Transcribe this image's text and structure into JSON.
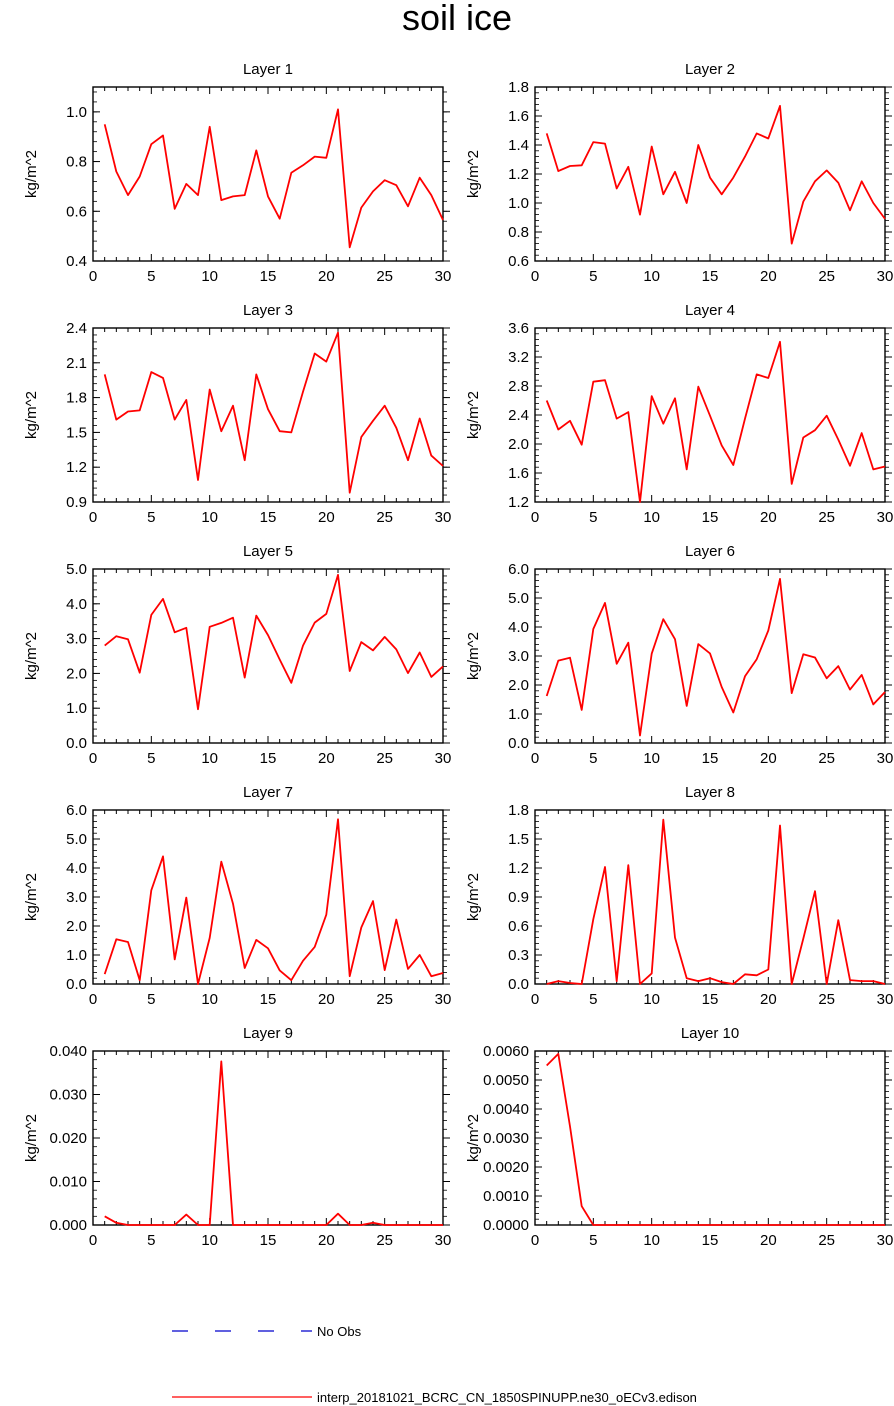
{
  "title": "soil ice",
  "colors": {
    "model": "#ff0000",
    "obs": "#0000cc",
    "axes": "#000000",
    "background": "#ffffff"
  },
  "legend": {
    "obs_label": "No Obs",
    "model_label": "interp_20181021_BCRC_CN_1850SPINUPP.ne30_oECv3.edison"
  },
  "chart_data": [
    {
      "type": "line",
      "title": "Layer 1",
      "ylabel": "kg/m^2",
      "xlim": [
        0,
        30
      ],
      "xticks": [
        0,
        5,
        10,
        15,
        20,
        25,
        30
      ],
      "ylim": [
        0.4,
        1.1
      ],
      "yticks": [
        "0.4",
        "0.6",
        "0.8",
        "1.0"
      ],
      "x": [
        1,
        2,
        3,
        4,
        5,
        6,
        7,
        8,
        9,
        10,
        11,
        12,
        13,
        14,
        15,
        16,
        17,
        18,
        19,
        20,
        21,
        22,
        23,
        24,
        25,
        26,
        27,
        28,
        29,
        30
      ],
      "values": [
        0.95,
        0.76,
        0.665,
        0.74,
        0.87,
        0.905,
        0.61,
        0.71,
        0.665,
        0.94,
        0.645,
        0.66,
        0.665,
        0.845,
        0.66,
        0.57,
        0.755,
        0.785,
        0.82,
        0.815,
        1.01,
        0.455,
        0.615,
        0.68,
        0.725,
        0.705,
        0.62,
        0.735,
        0.665,
        0.565
      ]
    },
    {
      "type": "line",
      "title": "Layer 2",
      "ylabel": "kg/m^2",
      "xlim": [
        0,
        30
      ],
      "xticks": [
        0,
        5,
        10,
        15,
        20,
        25,
        30
      ],
      "ylim": [
        0.6,
        1.8
      ],
      "yticks": [
        "0.6",
        "0.8",
        "1.0",
        "1.2",
        "1.4",
        "1.6",
        "1.8"
      ],
      "x": [
        1,
        2,
        3,
        4,
        5,
        6,
        7,
        8,
        9,
        10,
        11,
        12,
        13,
        14,
        15,
        16,
        17,
        18,
        19,
        20,
        21,
        22,
        23,
        24,
        25,
        26,
        27,
        28,
        29,
        30
      ],
      "values": [
        1.48,
        1.22,
        1.255,
        1.26,
        1.42,
        1.41,
        1.1,
        1.25,
        0.92,
        1.39,
        1.06,
        1.215,
        1.0,
        1.4,
        1.175,
        1.06,
        1.175,
        1.32,
        1.48,
        1.445,
        1.67,
        0.72,
        1.01,
        1.15,
        1.225,
        1.14,
        0.95,
        1.15,
        1.0,
        0.89
      ]
    },
    {
      "type": "line",
      "title": "Layer 3",
      "ylabel": "kg/m^2",
      "xlim": [
        0,
        30
      ],
      "xticks": [
        0,
        5,
        10,
        15,
        20,
        25,
        30
      ],
      "ylim": [
        0.9,
        2.4
      ],
      "yticks": [
        "0.9",
        "1.2",
        "1.5",
        "1.8",
        "2.1",
        "2.4"
      ],
      "x": [
        1,
        2,
        3,
        4,
        5,
        6,
        7,
        8,
        9,
        10,
        11,
        12,
        13,
        14,
        15,
        16,
        17,
        18,
        19,
        20,
        21,
        22,
        23,
        24,
        25,
        26,
        27,
        28,
        29,
        30
      ],
      "values": [
        2.0,
        1.61,
        1.68,
        1.69,
        2.02,
        1.97,
        1.61,
        1.78,
        1.09,
        1.87,
        1.51,
        1.73,
        1.26,
        2.0,
        1.7,
        1.51,
        1.5,
        1.85,
        2.18,
        2.11,
        2.36,
        0.98,
        1.46,
        1.6,
        1.73,
        1.54,
        1.26,
        1.62,
        1.3,
        1.21
      ]
    },
    {
      "type": "line",
      "title": "Layer 4",
      "ylabel": "kg/m^2",
      "xlim": [
        0,
        30
      ],
      "xticks": [
        0,
        5,
        10,
        15,
        20,
        25,
        30
      ],
      "ylim": [
        1.2,
        3.6
      ],
      "yticks": [
        "1.2",
        "1.6",
        "2.0",
        "2.4",
        "2.8",
        "3.2",
        "3.6"
      ],
      "x": [
        1,
        2,
        3,
        4,
        5,
        6,
        7,
        8,
        9,
        10,
        11,
        12,
        13,
        14,
        15,
        16,
        17,
        18,
        19,
        20,
        21,
        22,
        23,
        24,
        25,
        26,
        27,
        28,
        29,
        30
      ],
      "values": [
        2.6,
        2.2,
        2.32,
        1.99,
        2.86,
        2.88,
        2.35,
        2.44,
        1.2,
        2.66,
        2.28,
        2.63,
        1.65,
        2.79,
        2.39,
        1.98,
        1.71,
        2.35,
        2.96,
        2.91,
        3.41,
        1.45,
        2.09,
        2.19,
        2.39,
        2.06,
        1.7,
        2.15,
        1.65,
        1.69
      ]
    },
    {
      "type": "line",
      "title": "Layer 5",
      "ylabel": "kg/m^2",
      "xlim": [
        0,
        30
      ],
      "xticks": [
        0,
        5,
        10,
        15,
        20,
        25,
        30
      ],
      "ylim": [
        0,
        5
      ],
      "yticks": [
        "0.0",
        "1.0",
        "2.0",
        "3.0",
        "4.0",
        "5.0"
      ],
      "x": [
        1,
        2,
        3,
        4,
        5,
        6,
        7,
        8,
        9,
        10,
        11,
        12,
        13,
        14,
        15,
        16,
        17,
        18,
        19,
        20,
        21,
        22,
        23,
        24,
        25,
        26,
        27,
        28,
        29,
        30
      ],
      "values": [
        2.8,
        3.07,
        2.98,
        2.02,
        3.68,
        4.14,
        3.18,
        3.31,
        0.97,
        3.34,
        3.45,
        3.6,
        1.88,
        3.66,
        3.1,
        2.4,
        1.73,
        2.8,
        3.46,
        3.71,
        4.83,
        2.07,
        2.9,
        2.66,
        3.05,
        2.69,
        2.01,
        2.6,
        1.9,
        2.2
      ]
    },
    {
      "type": "line",
      "title": "Layer 6",
      "ylabel": "kg/m^2",
      "xlim": [
        0,
        30
      ],
      "xticks": [
        0,
        5,
        10,
        15,
        20,
        25,
        30
      ],
      "ylim": [
        0,
        6
      ],
      "yticks": [
        "0.0",
        "1.0",
        "2.0",
        "3.0",
        "4.0",
        "5.0",
        "6.0"
      ],
      "x": [
        1,
        2,
        3,
        4,
        5,
        6,
        7,
        8,
        9,
        10,
        11,
        12,
        13,
        14,
        15,
        16,
        17,
        18,
        19,
        20,
        21,
        22,
        23,
        24,
        25,
        26,
        27,
        28,
        29,
        30
      ],
      "values": [
        1.62,
        2.84,
        2.94,
        1.14,
        3.93,
        4.83,
        2.73,
        3.46,
        0.26,
        3.08,
        4.27,
        3.58,
        1.28,
        3.41,
        3.09,
        1.93,
        1.05,
        2.3,
        2.89,
        3.88,
        5.66,
        1.72,
        3.06,
        2.95,
        2.23,
        2.65,
        1.84,
        2.35,
        1.33,
        1.76
      ]
    },
    {
      "type": "line",
      "title": "Layer 7",
      "ylabel": "kg/m^2",
      "xlim": [
        0,
        30
      ],
      "xticks": [
        0,
        5,
        10,
        15,
        20,
        25,
        30
      ],
      "ylim": [
        0,
        6
      ],
      "yticks": [
        "0.0",
        "1.0",
        "2.0",
        "3.0",
        "4.0",
        "5.0",
        "6.0"
      ],
      "x": [
        1,
        2,
        3,
        4,
        5,
        6,
        7,
        8,
        9,
        10,
        11,
        12,
        13,
        14,
        15,
        16,
        17,
        18,
        19,
        20,
        21,
        22,
        23,
        24,
        25,
        26,
        27,
        28,
        29,
        30
      ],
      "values": [
        0.34,
        1.54,
        1.45,
        0.13,
        3.23,
        4.4,
        0.85,
        2.98,
        0.0,
        1.59,
        4.22,
        2.77,
        0.55,
        1.52,
        1.23,
        0.47,
        0.13,
        0.8,
        1.28,
        2.39,
        5.68,
        0.27,
        1.95,
        2.86,
        0.48,
        2.22,
        0.52,
        1.0,
        0.27,
        0.38
      ]
    },
    {
      "type": "line",
      "title": "Layer 8",
      "ylabel": "kg/m^2",
      "xlim": [
        0,
        30
      ],
      "xticks": [
        0,
        5,
        10,
        15,
        20,
        25,
        30
      ],
      "ylim": [
        0,
        1.8
      ],
      "yticks": [
        "0.0",
        "0.3",
        "0.6",
        "0.9",
        "1.2",
        "1.5",
        "1.8"
      ],
      "x": [
        1,
        2,
        3,
        4,
        5,
        6,
        7,
        8,
        9,
        10,
        11,
        12,
        13,
        14,
        15,
        16,
        17,
        18,
        19,
        20,
        21,
        22,
        23,
        24,
        25,
        26,
        27,
        28,
        29,
        30
      ],
      "values": [
        0.0,
        0.03,
        0.01,
        0.0,
        0.67,
        1.21,
        0.03,
        1.23,
        0.0,
        0.11,
        1.7,
        0.48,
        0.06,
        0.03,
        0.06,
        0.02,
        0.0,
        0.1,
        0.09,
        0.15,
        1.64,
        0.0,
        0.47,
        0.96,
        0.0,
        0.66,
        0.04,
        0.03,
        0.03,
        0.0
      ]
    },
    {
      "type": "line",
      "title": "Layer 9",
      "ylabel": "kg/m^2",
      "xlim": [
        0,
        30
      ],
      "xticks": [
        0,
        5,
        10,
        15,
        20,
        25,
        30
      ],
      "ylim": [
        0,
        0.04
      ],
      "yticks": [
        "0.000",
        "0.010",
        "0.020",
        "0.030",
        "0.040"
      ],
      "x": [
        1,
        2,
        3,
        4,
        5,
        6,
        7,
        8,
        9,
        10,
        11,
        12,
        13,
        14,
        15,
        16,
        17,
        18,
        19,
        20,
        21,
        22,
        23,
        24,
        25,
        26,
        27,
        28,
        29,
        30
      ],
      "values": [
        0.002,
        0.0005,
        0.0,
        0.0,
        0.0,
        0.0,
        0.0,
        0.0024,
        0.0,
        0.0,
        0.0376,
        0.0,
        0.0,
        0.0,
        0.0,
        0.0,
        0.0,
        0.0,
        0.0,
        0.0,
        0.0026,
        0.0,
        0.0,
        0.0005,
        0.0,
        0.0,
        0.0,
        0.0,
        0.0,
        0.0
      ]
    },
    {
      "type": "line",
      "title": "Layer 10",
      "ylabel": "kg/m^2",
      "xlim": [
        0,
        30
      ],
      "xticks": [
        0,
        5,
        10,
        15,
        20,
        25,
        30
      ],
      "ylim": [
        0,
        0.006
      ],
      "yticks": [
        "0.0000",
        "0.0010",
        "0.0020",
        "0.0030",
        "0.0040",
        "0.0050",
        "0.0060"
      ],
      "x": [
        1,
        2,
        3,
        4,
        5,
        6,
        7,
        8,
        9,
        10,
        11,
        12,
        13,
        14,
        15,
        16,
        17,
        18,
        19,
        20,
        21,
        22,
        23,
        24,
        25,
        26,
        27,
        28,
        29,
        30
      ],
      "values": [
        0.0055,
        0.0059,
        0.0034,
        0.00065,
        0.0,
        0.0,
        0.0,
        0.0,
        0.0,
        0.0,
        0.0,
        0.0,
        0.0,
        0.0,
        0.0,
        0.0,
        0.0,
        0.0,
        0.0,
        0.0,
        0.0,
        0.0,
        0.0,
        0.0,
        0.0,
        0.0,
        0.0,
        0.0,
        0.0,
        0.0
      ]
    }
  ]
}
